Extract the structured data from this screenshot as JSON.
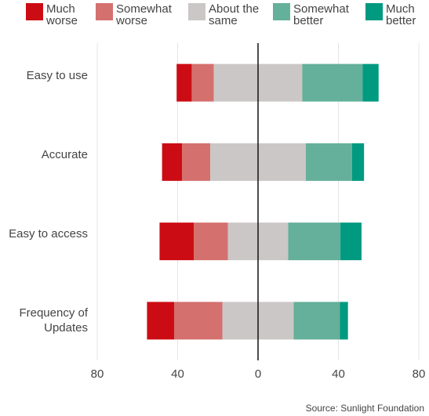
{
  "chart_data": {
    "type": "diverging-bar",
    "categories": [
      "Easy to use",
      "Accurate",
      "Easy to access",
      "Frequency of Updates"
    ],
    "series": [
      {
        "name": "Much worse",
        "color": "#cc0c14",
        "values": [
          7.5,
          10,
          17,
          13.5
        ]
      },
      {
        "name": "Somewhat worse",
        "color": "#d4706e",
        "values": [
          11,
          14,
          17,
          24
        ]
      },
      {
        "name": "About the same",
        "color": "#cbc7c6",
        "values": [
          44,
          47.5,
          30,
          35.5
        ]
      },
      {
        "name": "Somewhat better",
        "color": "#64b09a",
        "values": [
          30,
          23,
          26,
          23
        ]
      },
      {
        "name": "Much better",
        "color": "#009a80",
        "values": [
          8,
          6,
          10.5,
          4
        ]
      }
    ],
    "xlim": [
      -80,
      80
    ],
    "xticks": [
      {
        "value": -80,
        "label": "80"
      },
      {
        "value": -40,
        "label": "40"
      },
      0,
      40,
      80
    ],
    "source": "Source: Sunlight Foundation"
  }
}
